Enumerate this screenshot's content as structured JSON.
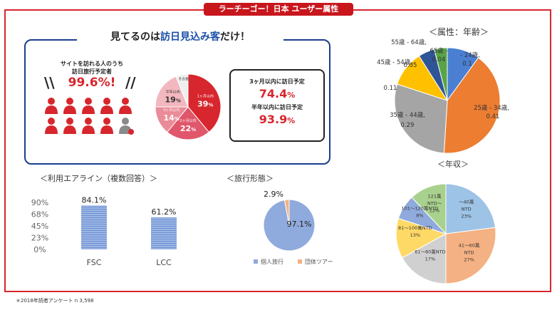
{
  "header": {
    "title": "ラーチーゴー！日本 ユーザー属性"
  },
  "visit": {
    "title_prefix": "見てるのは",
    "title_highlight": "訪日見込み客",
    "title_suffix": "だけ！",
    "site_label_line1": "サイトを訪れる人のうち",
    "site_label_line2": "訪日旅行予定者",
    "pct": "99.6%!",
    "slash": "\\\\",
    "slash_right": "//"
  },
  "stats": {
    "label_3m": "3ヶ月以内に訪日予定",
    "value_3m": "74.4",
    "label_6m": "半年以内に訪日予定",
    "value_6m": "93.9",
    "unit": "%"
  },
  "section_titles": {
    "age": "＜属性：年齢＞",
    "income": "＜年収＞",
    "airline": "＜利用エアライン（複数回答）＞",
    "travel": "＜旅行形態＞"
  },
  "colors": {
    "red": "#d7262d",
    "navy": "#1b3f8f",
    "person_red": "#d7262d",
    "person_gray": "#8a8a8a"
  },
  "footnote": "＊2018年読者アンケート n 3,598",
  "chart_data": [
    {
      "id": "visit_timing",
      "type": "pie",
      "slices": [
        {
          "label": "1ヶ月以内",
          "value": 39,
          "display": "39",
          "color": "#d7262d"
        },
        {
          "label": "2ヶ月以内",
          "value": 22,
          "display": "22",
          "color": "#e0566a"
        },
        {
          "label": "3ヶ月以内",
          "value": 14,
          "display": "14",
          "color": "#ea8b98"
        },
        {
          "label": "半年以内",
          "value": 19,
          "display": "19",
          "color": "#f3b7bf"
        },
        {
          "label": "その他",
          "value": 6,
          "display": "",
          "color": "#efefef"
        }
      ],
      "unit": "%"
    },
    {
      "id": "age",
      "type": "pie",
      "title": "＜属性：年齢＞",
      "slices": [
        {
          "label": "65歳 -",
          "value": 0.04,
          "display": "0.04",
          "color": "#5aa447"
        },
        {
          "label": "- 24歳,",
          "value": 0.1,
          "display": "0.1",
          "color": "#4a7fd1"
        },
        {
          "label": "25歳 - 34歳,",
          "value": 0.41,
          "display": "0.41",
          "color": "#ed7d31"
        },
        {
          "label": "35歳 - 44歳,",
          "value": 0.29,
          "display": "0.29",
          "color": "#a5a5a5"
        },
        {
          "label": "45歳 - 54歳,",
          "value": 0.11,
          "display": "0.11",
          "color": "#ffc000"
        },
        {
          "label": "55歳 - 64歳,",
          "value": 0.05,
          "display": "0.05",
          "color": "#2f5597"
        }
      ]
    },
    {
      "id": "income",
      "type": "pie",
      "title": "＜年収＞",
      "slices": [
        {
          "label": "121萬 NTD〜",
          "value": 12,
          "display": "12%",
          "color": "#a9d18e"
        },
        {
          "label": "〜40萬 NTD",
          "value": 23,
          "display": "23%",
          "color": "#9dc3e6"
        },
        {
          "label": "41〜60萬 NTD",
          "value": 27,
          "display": "27%",
          "color": "#f4b183"
        },
        {
          "label": "61〜80萬NTD",
          "value": 17,
          "display": "17%",
          "color": "#d0d0d0"
        },
        {
          "label": "81〜100萬NTD",
          "value": 13,
          "display": "13%",
          "color": "#ffd966"
        },
        {
          "label": "101〜120萬NTD",
          "value": 8,
          "display": "8%",
          "color": "#8faadc"
        }
      ]
    },
    {
      "id": "airline",
      "type": "bar",
      "title": "＜利用エアライン（複数回答）＞",
      "categories": [
        "FSC",
        "LCC"
      ],
      "values": [
        84.1,
        61.2
      ],
      "value_labels": [
        "84.1%",
        "61.2%"
      ],
      "y_ticks": [
        "90%",
        "68%",
        "45%",
        "23%",
        "0%"
      ],
      "ylim": [
        0,
        90
      ]
    },
    {
      "id": "travel",
      "type": "pie",
      "title": "＜旅行形態＞",
      "slices": [
        {
          "label": "個人旅行",
          "value": 97.1,
          "display": "97.1%",
          "color": "#8faadc"
        },
        {
          "label": "団体ツアー",
          "value": 2.9,
          "display": "2.9%",
          "color": "#f4b183"
        }
      ]
    }
  ]
}
